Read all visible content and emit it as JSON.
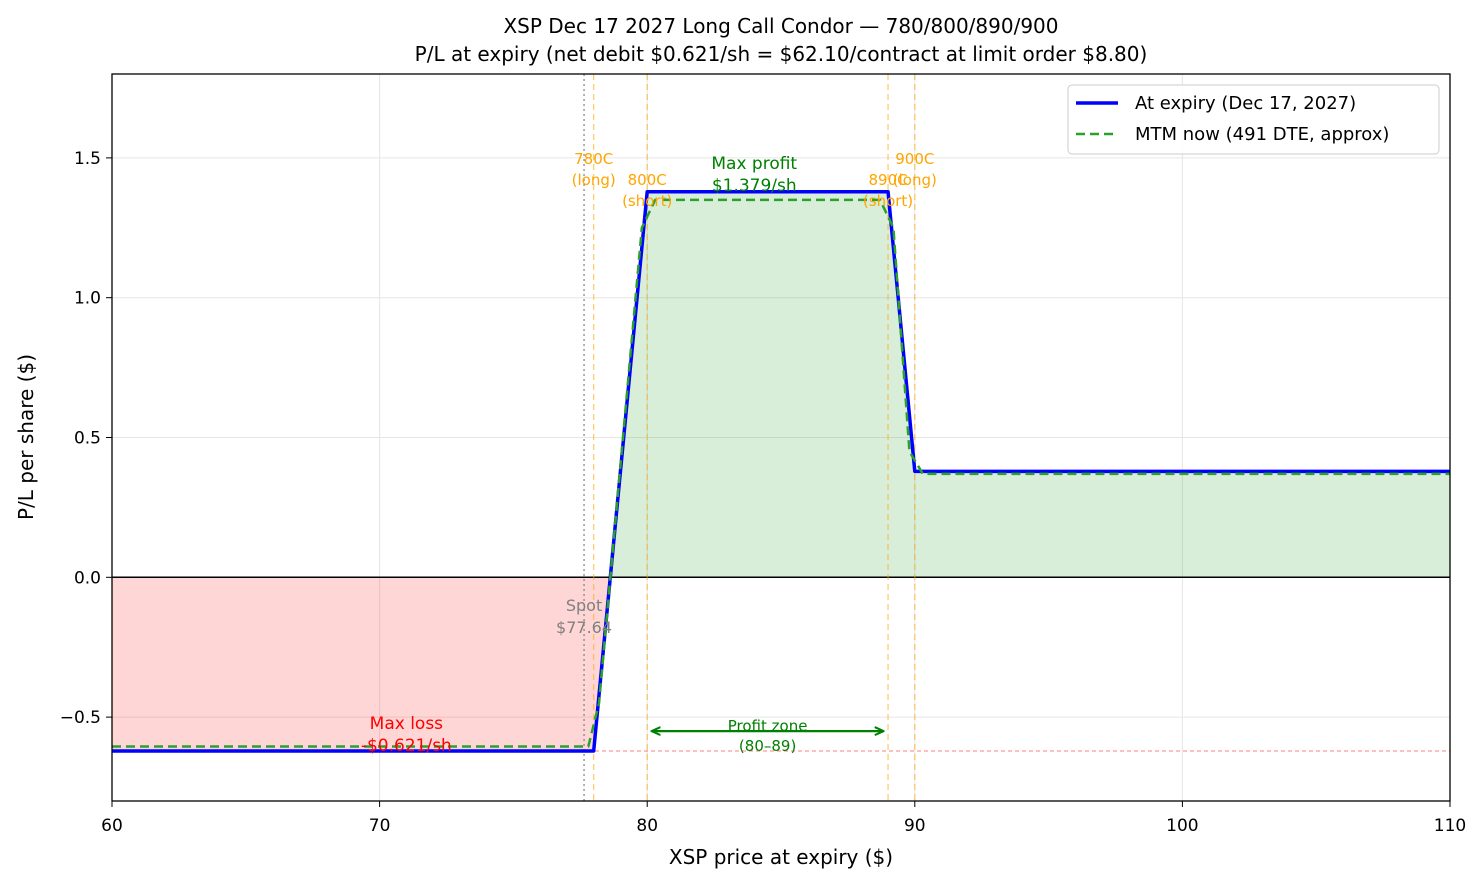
{
  "chart_data": {
    "type": "line",
    "title": "XSP Dec 17 2027 Long Call Condor — 780/800/890/900",
    "subtitle": "P/L at expiry (net debit $0.621/sh = $62.10/contract at limit order $8.80)",
    "xlabel": "XSP price at expiry ($)",
    "ylabel": "P/L per share ($)",
    "xlim": [
      60,
      110
    ],
    "ylim": [
      -0.8,
      1.8
    ],
    "x_ticks": [
      60,
      70,
      80,
      90,
      100,
      110
    ],
    "x_tick_labels": [
      "60",
      "70",
      "80",
      "90",
      "100",
      "110"
    ],
    "y_ticks": [
      -0.5,
      0.0,
      0.5,
      1.0,
      1.5
    ],
    "y_tick_labels": [
      "−0.5",
      "0.0",
      "0.5",
      "1.0",
      "1.5"
    ],
    "grid": true,
    "legend_position": "top-right",
    "series": [
      {
        "name": "At expiry (Dec 17, 2027)",
        "color": "#0000ff",
        "style": "solid",
        "x": [
          60,
          78.0,
          80.0,
          89.0,
          90.0,
          110
        ],
        "y": [
          -0.621,
          -0.621,
          1.379,
          1.379,
          0.379,
          0.379
        ]
      },
      {
        "name": "MTM now (491 DTE, approx)",
        "color": "#2ca02c",
        "style": "dashed",
        "x": [
          60,
          77.8,
          78.2,
          79.8,
          80.3,
          88.7,
          89.2,
          89.8,
          90.3,
          110
        ],
        "y": [
          -0.605,
          -0.605,
          -0.45,
          1.25,
          1.35,
          1.35,
          1.25,
          0.45,
          0.37,
          0.37
        ]
      }
    ],
    "fill_regions": [
      {
        "kind": "loss",
        "color": "#ff0000",
        "opacity": 0.16
      },
      {
        "kind": "profit",
        "color": "#2ca02c",
        "opacity": 0.18
      }
    ],
    "strikes": [
      {
        "x": 78.0,
        "label_lines": [
          "780C",
          "(long)"
        ]
      },
      {
        "x": 80.0,
        "label_lines": [
          "800C",
          "(short)"
        ]
      },
      {
        "x": 89.0,
        "label_lines": [
          "890C",
          "(short)"
        ]
      },
      {
        "x": 90.0,
        "label_lines": [
          "900C",
          "(long)"
        ]
      }
    ],
    "spot": {
      "x": 77.64,
      "label_lines": [
        "Spot",
        "$77.64"
      ]
    },
    "max_loss_level": -0.621,
    "annotations": {
      "max_profit": {
        "lines": [
          "Max profit",
          "$1.379/sh"
        ],
        "x": 84.0,
        "y": 1.379
      },
      "max_loss": {
        "lines": [
          "Max loss",
          "-$0.621/sh"
        ],
        "x": 71.0,
        "y": -0.621
      },
      "profit_zone": {
        "lines": [
          "Profit zone",
          "(80–89)"
        ],
        "x_start": 80.2,
        "x_end": 88.8,
        "y": -0.55
      }
    },
    "colors": {
      "strike": "#ffa500",
      "spot": "#808080",
      "max_profit": "#008000",
      "max_loss": "#ff0000",
      "zero_line": "#000000"
    }
  }
}
